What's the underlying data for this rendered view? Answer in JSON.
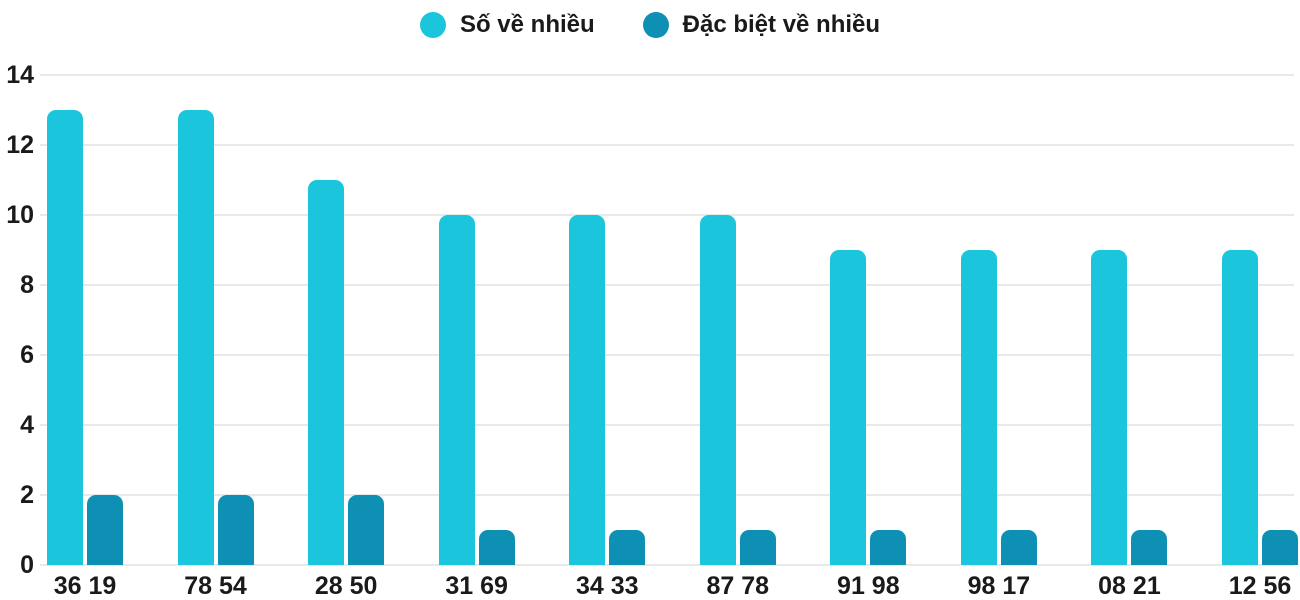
{
  "chart_data": {
    "type": "bar",
    "title": "",
    "xlabel": "",
    "ylabel": "",
    "categories": [
      "36 19",
      "78 54",
      "28 50",
      "31 69",
      "34 33",
      "87 78",
      "91 98",
      "98 17",
      "08 21",
      "12 56"
    ],
    "series": [
      {
        "name": "Số về nhiều",
        "color": "#1bc5dc",
        "values": [
          13,
          13,
          11,
          10,
          10,
          10,
          9,
          9,
          9,
          9
        ]
      },
      {
        "name": "Đặc biệt về nhiều",
        "color": "#0e8fb4",
        "values": [
          2,
          2,
          2,
          1,
          1,
          1,
          1,
          1,
          1,
          1
        ]
      }
    ],
    "ylim": [
      0,
      14
    ],
    "yticks": [
      0,
      2,
      4,
      6,
      8,
      10,
      12,
      14
    ],
    "grid": "horizontal",
    "grid_color": "#e9e9e9",
    "text_color": "#1a1a1a",
    "legend_position": "top-center"
  }
}
